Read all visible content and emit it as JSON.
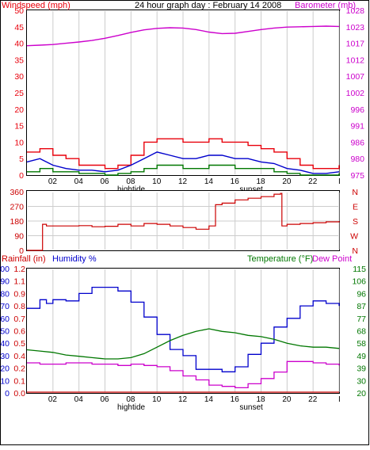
{
  "colors": {
    "windspeed": "#e8000b",
    "gust": "#e8000b",
    "wind_avg": "#0000cc",
    "wind_low": "#007700",
    "barometer": "#cc00cc",
    "direction": "#cc0000",
    "humidity": "#0000cc",
    "temperature": "#007700",
    "dewpoint": "#cc00cc",
    "rainfall": "#cc0000",
    "grid": "#cccccc",
    "frame": "#000000"
  },
  "chart_data": [
    {
      "type": "line",
      "id": "wind-baro",
      "title": "24 hour graph day : February 14 2008",
      "left_axis_title": "Windspeed (mph)",
      "right_axis_title": "Barometer (mb)",
      "left_ticks": [
        "0",
        "5",
        "10",
        "15",
        "20",
        "25",
        "30",
        "35",
        "40",
        "45",
        "50"
      ],
      "right_ticks": [
        "975",
        "980",
        "986",
        "991",
        "996",
        "1002",
        "1007",
        "1012",
        "1017",
        "1023",
        "1028"
      ],
      "x_ticks": [
        "02",
        "04",
        "06",
        "08",
        "10",
        "12",
        "14",
        "16",
        "18",
        "20",
        "22",
        "I"
      ],
      "markers": [
        {
          "label": "hightide",
          "hour": 7.8
        },
        {
          "label": "sunset",
          "hour": 17.2
        }
      ],
      "ylim_left": [
        0,
        50
      ],
      "ylim_right": [
        975,
        1028
      ],
      "xlim": [
        0,
        24
      ],
      "barometer": {
        "hours": [
          0,
          1,
          2,
          3,
          4,
          5,
          6,
          7,
          8,
          9,
          10,
          11,
          12,
          13,
          14,
          15,
          16,
          17,
          18,
          19,
          20,
          21,
          22,
          23,
          24
        ],
        "values": [
          1016.6,
          1016.8,
          1017.0,
          1017.4,
          1017.8,
          1018.3,
          1019.0,
          1019.9,
          1020.9,
          1021.7,
          1022.2,
          1022.4,
          1022.3,
          1021.8,
          1021.0,
          1020.5,
          1020.6,
          1021.2,
          1021.8,
          1022.3,
          1022.6,
          1022.7,
          1022.8,
          1022.9,
          1022.8
        ]
      },
      "wind_gust": {
        "hours": [
          0,
          1,
          2,
          3,
          4,
          5,
          6,
          7,
          8,
          9,
          10,
          11,
          12,
          13,
          14,
          15,
          16,
          17,
          18,
          19,
          20,
          21,
          22,
          23,
          24
        ],
        "values": [
          7,
          8,
          6,
          5,
          3,
          3,
          2,
          3,
          6,
          10,
          11,
          11,
          10,
          10,
          11,
          10,
          10,
          9,
          8,
          7,
          5,
          3,
          2,
          2,
          3
        ]
      },
      "wind_avg": {
        "hours": [
          0,
          1,
          2,
          3,
          4,
          5,
          6,
          7,
          8,
          9,
          10,
          11,
          12,
          13,
          14,
          15,
          16,
          17,
          18,
          19,
          20,
          21,
          22,
          23,
          24
        ],
        "values": [
          4,
          5,
          3,
          2,
          1.5,
          1.5,
          1,
          1.5,
          3,
          5,
          7,
          6,
          5,
          5,
          6,
          6,
          5,
          5,
          4,
          3.5,
          2,
          1.5,
          0.5,
          0.5,
          1
        ]
      },
      "wind_low": {
        "hours": [
          0,
          1,
          2,
          3,
          4,
          5,
          6,
          7,
          8,
          9,
          10,
          11,
          12,
          13,
          14,
          15,
          16,
          17,
          18,
          19,
          20,
          21,
          22,
          23,
          24
        ],
        "values": [
          1,
          2,
          1,
          1,
          0.5,
          0.5,
          0,
          0.5,
          1,
          2,
          3,
          3,
          2,
          2,
          3,
          3,
          2,
          2,
          2,
          1,
          0.5,
          0,
          0,
          0,
          0.5
        ]
      }
    },
    {
      "type": "line",
      "id": "direction",
      "left_ticks": [
        "0",
        "90",
        "180",
        "270",
        "360"
      ],
      "right_ticks": [
        "N",
        "W",
        "S",
        "E",
        "N"
      ],
      "ylim": [
        0,
        360
      ],
      "xlim": [
        0,
        24
      ],
      "direction": {
        "hours": [
          0,
          1.2,
          1.2,
          1.5,
          2,
          3,
          4,
          5,
          6,
          7,
          8,
          9,
          10,
          11,
          12,
          13,
          14,
          14.5,
          15,
          16,
          17,
          18,
          19,
          19.5,
          19.6,
          20,
          21,
          22,
          23,
          24
        ],
        "values": [
          0,
          0,
          160,
          150,
          150,
          150,
          152,
          145,
          148,
          160,
          150,
          165,
          160,
          150,
          140,
          130,
          150,
          280,
          290,
          310,
          320,
          330,
          345,
          350,
          150,
          160,
          165,
          170,
          175,
          180
        ]
      }
    },
    {
      "type": "line",
      "id": "temp-humidity",
      "left_axis_title_rain": "Rainfall (in)",
      "left_axis_title_humidity": "Humidity %",
      "right_axis_title_temp": "Temperature (°F)",
      "right_axis_title_dew": "Dew Point",
      "rain_ticks": [
        "0.0",
        "0.1",
        "0.2",
        "0.4",
        "0.5",
        "0.6",
        "0.7",
        "0.8",
        "0.9",
        "1.1",
        "1.2"
      ],
      "humidity_ticks": [
        "0",
        "10",
        "20",
        "30",
        "40",
        "50",
        "60",
        "70",
        "80",
        "90",
        "100"
      ],
      "temp_ticks": [
        "20",
        "30",
        "39",
        "49",
        "58",
        "68",
        "77",
        "87",
        "96",
        "106",
        "115"
      ],
      "x_ticks": [
        "02",
        "04",
        "06",
        "08",
        "10",
        "12",
        "14",
        "16",
        "18",
        "20",
        "22",
        "I"
      ],
      "markers": [
        {
          "label": "hightide",
          "hour": 7.8
        },
        {
          "label": "sunset",
          "hour": 17.2
        }
      ],
      "ylim_humidity": [
        0,
        100
      ],
      "ylim_temp": [
        20,
        115
      ],
      "xlim": [
        0,
        24
      ],
      "humidity": {
        "hours": [
          0,
          1,
          1.5,
          2,
          3,
          4,
          5,
          6,
          7,
          8,
          9,
          10,
          11,
          12,
          13,
          14,
          15,
          16,
          17,
          18,
          19,
          20,
          21,
          22,
          23,
          24
        ],
        "values": [
          68,
          75,
          72,
          75,
          74,
          80,
          85,
          85,
          82,
          73,
          61,
          47,
          35,
          30,
          19,
          19,
          17,
          21,
          31,
          40,
          53,
          60,
          70,
          74,
          72,
          70
        ]
      },
      "temperature": {
        "hours": [
          0,
          1,
          2,
          3,
          4,
          5,
          6,
          7,
          8,
          9,
          10,
          11,
          12,
          13,
          14,
          15,
          16,
          17,
          18,
          19,
          20,
          21,
          22,
          23,
          24
        ],
        "values": [
          53,
          52,
          51,
          49,
          48,
          47,
          46,
          46,
          47,
          50,
          55,
          60,
          64,
          67,
          69,
          67,
          66,
          64,
          63,
          61,
          58,
          56,
          55,
          55,
          54
        ]
      },
      "dewpoint": {
        "hours": [
          0,
          1,
          2,
          3,
          4,
          5,
          6,
          7,
          8,
          9,
          10,
          11,
          12,
          13,
          14,
          15,
          16,
          17,
          18,
          19,
          20,
          21,
          22,
          23,
          24
        ],
        "values": [
          43,
          42,
          42,
          43,
          43,
          42,
          42,
          41,
          42,
          41,
          40,
          37,
          33,
          30,
          26,
          25,
          24,
          27,
          31,
          36,
          44,
          44,
          43,
          42,
          41
        ]
      },
      "rainfall": {
        "hours": [
          0,
          24
        ],
        "values": [
          0,
          0
        ]
      }
    }
  ]
}
